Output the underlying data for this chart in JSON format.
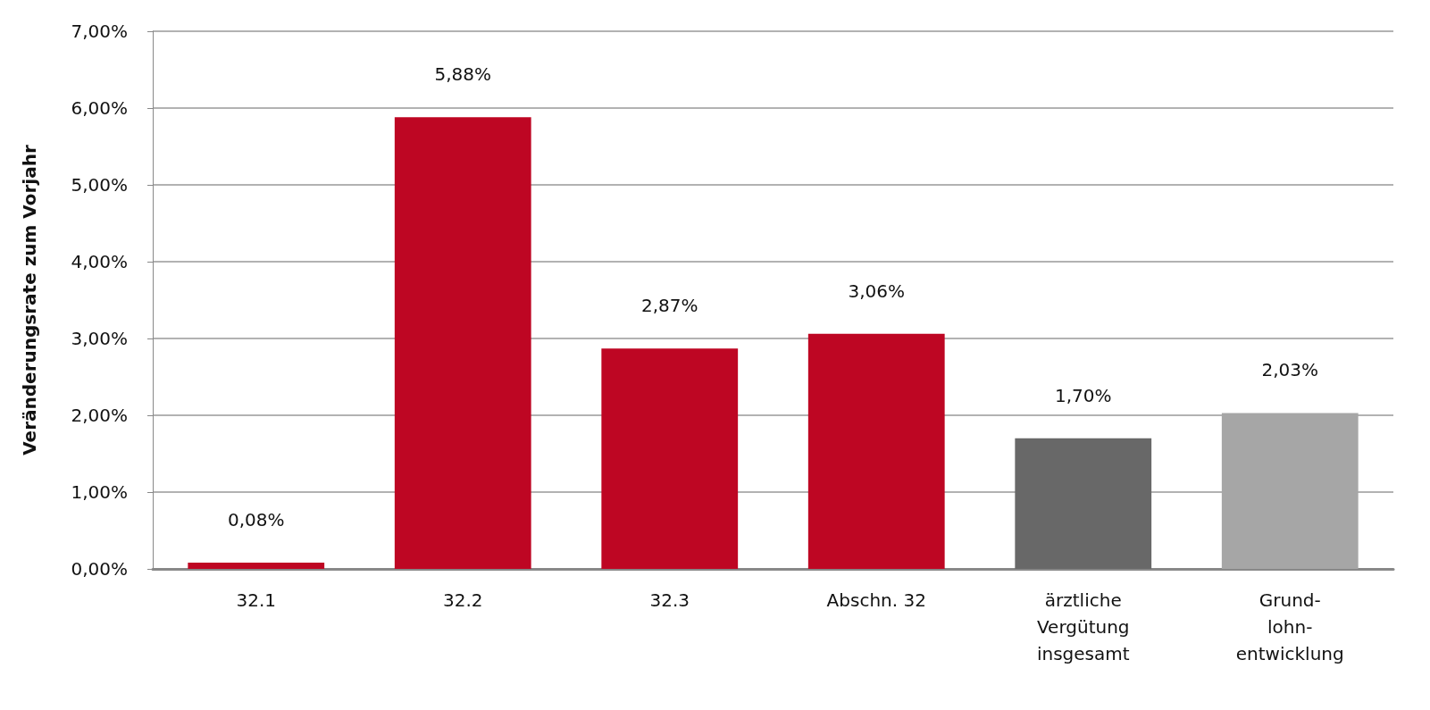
{
  "chart_data": {
    "type": "bar",
    "ylabel": "Veränderungsrate zum Vorjahr",
    "categories": [
      "32.1",
      "32.2",
      "32.3",
      "Abschn. 32",
      "ärztliche\nVergütung\ninsgesamt",
      "Grund-\nlohn-\nentwicklung"
    ],
    "values": [
      0.08,
      5.88,
      2.87,
      3.06,
      1.7,
      2.03
    ],
    "colors": [
      "#be0623",
      "#be0623",
      "#be0623",
      "#be0623",
      "#686868",
      "#a6a6a6"
    ],
    "value_labels": [
      "0,08%",
      "5,88%",
      "2,87%",
      "3,06%",
      "1,70%",
      "2,03%"
    ],
    "ylim": [
      0,
      7
    ],
    "yticks": [
      {
        "value": 0,
        "label": "0,00%"
      },
      {
        "value": 1,
        "label": "1,00%"
      },
      {
        "value": 2,
        "label": "2,00%"
      },
      {
        "value": 3,
        "label": "3,00%"
      },
      {
        "value": 4,
        "label": "4,00%"
      },
      {
        "value": 5,
        "label": "5,00%"
      },
      {
        "value": 6,
        "label": "6,00%"
      },
      {
        "value": 7,
        "label": "7,00%"
      }
    ],
    "grid": "y"
  }
}
